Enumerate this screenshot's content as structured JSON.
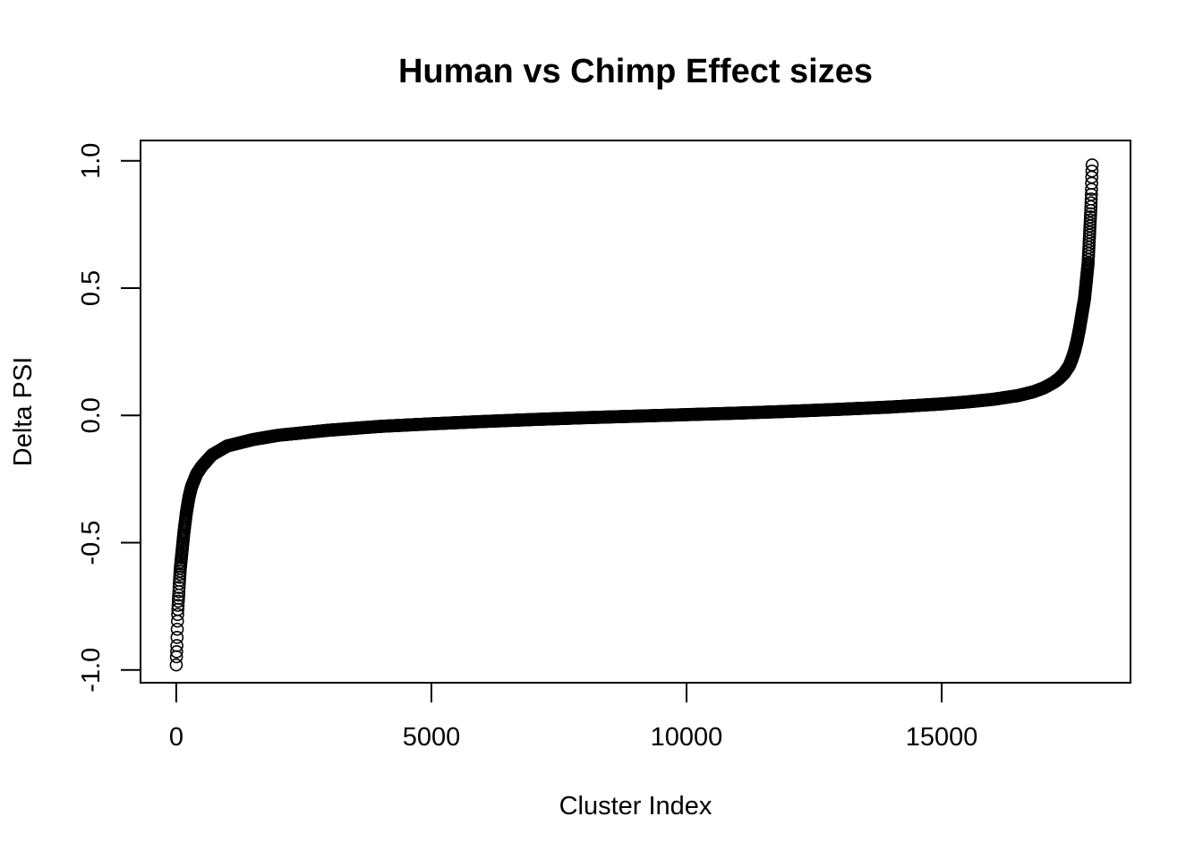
{
  "chart_data": {
    "type": "scatter",
    "title": "Human vs Chimp Effect sizes",
    "xlabel": "Cluster Index",
    "ylabel": "Delta PSI",
    "xlim": [
      -700,
      18700
    ],
    "ylim": [
      -1.05,
      1.08
    ],
    "x_ticks": [
      0,
      5000,
      10000,
      15000
    ],
    "x_tick_labels": [
      "0",
      "5000",
      "10000",
      "15000"
    ],
    "y_ticks": [
      -1.0,
      -0.5,
      0.0,
      0.5,
      1.0
    ],
    "y_tick_labels": [
      "-1.0",
      "-0.5",
      "0.0",
      "0.5",
      "1.0"
    ],
    "grid": false,
    "marker": "open-circle",
    "color": "#000000",
    "n_points": 17950,
    "series": [
      {
        "values": [
          [
            0,
            -0.98
          ],
          [
            5,
            -0.94
          ],
          [
            10,
            -0.92
          ],
          [
            15,
            -0.88
          ],
          [
            20,
            -0.84
          ],
          [
            25,
            -0.8
          ],
          [
            30,
            -0.77
          ],
          [
            40,
            -0.73
          ],
          [
            50,
            -0.7
          ],
          [
            60,
            -0.66
          ],
          [
            70,
            -0.63
          ],
          [
            80,
            -0.6
          ],
          [
            100,
            -0.56
          ],
          [
            120,
            -0.52
          ],
          [
            150,
            -0.46
          ],
          [
            200,
            -0.38
          ],
          [
            250,
            -0.32
          ],
          [
            300,
            -0.28
          ],
          [
            400,
            -0.23
          ],
          [
            500,
            -0.2
          ],
          [
            700,
            -0.155
          ],
          [
            1000,
            -0.12
          ],
          [
            1500,
            -0.095
          ],
          [
            2000,
            -0.078
          ],
          [
            3000,
            -0.058
          ],
          [
            4000,
            -0.043
          ],
          [
            5000,
            -0.033
          ],
          [
            6000,
            -0.024
          ],
          [
            7000,
            -0.016
          ],
          [
            8000,
            -0.009
          ],
          [
            9000,
            -0.003
          ],
          [
            10000,
            0.003
          ],
          [
            11000,
            0.009
          ],
          [
            12000,
            0.016
          ],
          [
            13000,
            0.024
          ],
          [
            14000,
            0.033
          ],
          [
            15000,
            0.045
          ],
          [
            15500,
            0.053
          ],
          [
            16000,
            0.063
          ],
          [
            16500,
            0.078
          ],
          [
            16800,
            0.093
          ],
          [
            17000,
            0.108
          ],
          [
            17200,
            0.13
          ],
          [
            17300,
            0.145
          ],
          [
            17400,
            0.165
          ],
          [
            17500,
            0.195
          ],
          [
            17550,
            0.22
          ],
          [
            17600,
            0.25
          ],
          [
            17650,
            0.29
          ],
          [
            17700,
            0.34
          ],
          [
            17750,
            0.4
          ],
          [
            17800,
            0.46
          ],
          [
            17830,
            0.52
          ],
          [
            17850,
            0.56
          ],
          [
            17870,
            0.6
          ],
          [
            17880,
            0.64
          ],
          [
            17890,
            0.68
          ],
          [
            17900,
            0.72
          ],
          [
            17910,
            0.76
          ],
          [
            17920,
            0.8
          ],
          [
            17930,
            0.85
          ],
          [
            17935,
            0.88
          ],
          [
            17940,
            0.92
          ],
          [
            17945,
            0.96
          ],
          [
            17950,
            1.0
          ]
        ]
      }
    ]
  }
}
